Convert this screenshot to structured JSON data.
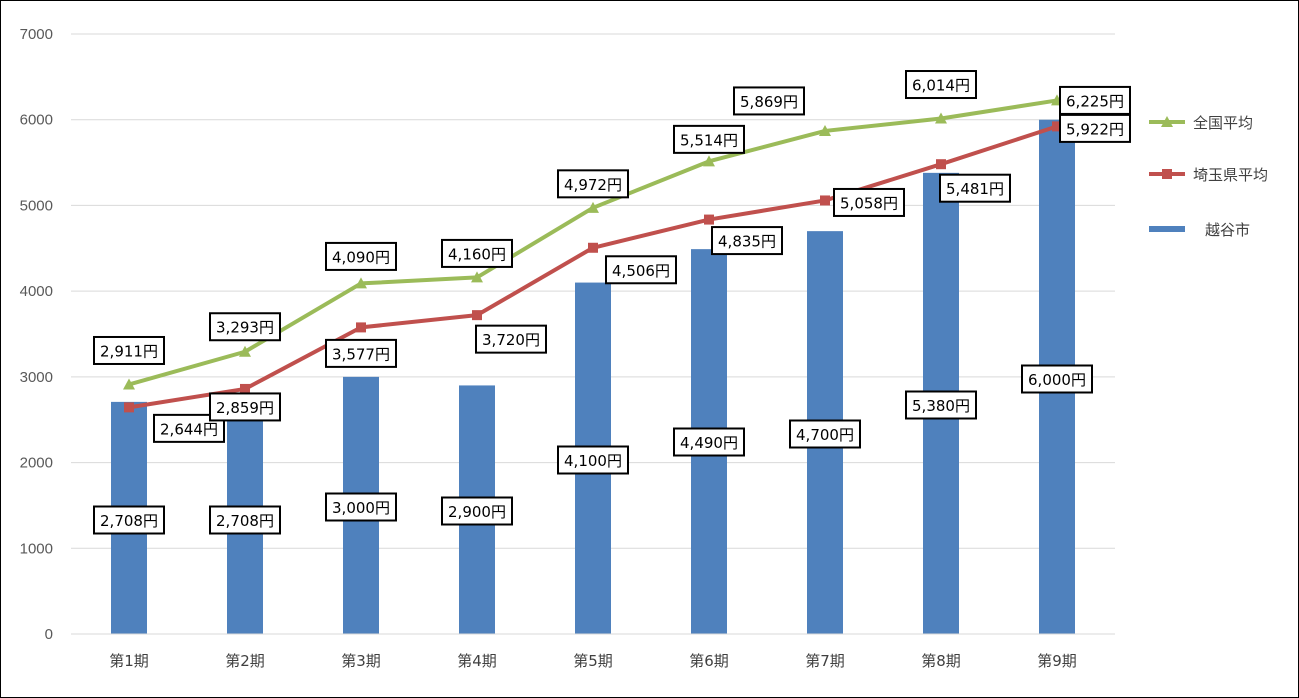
{
  "chart_data": {
    "type": "bar",
    "title": "",
    "xlabel": "",
    "ylabel": "",
    "ylim": [
      0,
      7000
    ],
    "yticks": [
      0,
      1000,
      2000,
      3000,
      4000,
      5000,
      6000,
      7000
    ],
    "grid": true,
    "legend_position": "right",
    "categories": [
      "第1期",
      "第2期",
      "第3期",
      "第4期",
      "第5期",
      "第6期",
      "第7期",
      "第8期",
      "第9期"
    ],
    "series": [
      {
        "name": "越谷市",
        "kind": "bar",
        "color": "#4f81bd",
        "values": [
          2708,
          2708,
          3000,
          2900,
          4100,
          4490,
          4700,
          5380,
          6000
        ],
        "labels": [
          "2,708円",
          "2,708円",
          "3,000円",
          "2,900円",
          "4,100円",
          "4,490円",
          "4,700円",
          "5,380円",
          "6,000円"
        ]
      },
      {
        "name": "全国平均",
        "kind": "line",
        "marker": "triangle",
        "color": "#9bbb59",
        "values": [
          2911,
          3293,
          4090,
          4160,
          4972,
          5514,
          5869,
          6014,
          6225
        ],
        "labels": [
          "2,911円",
          "3,293円",
          "4,090円",
          "4,160円",
          "4,972円",
          "5,514円",
          "5,869円",
          "6,014円",
          "6,225円"
        ]
      },
      {
        "name": "埼玉県平均",
        "kind": "line",
        "marker": "square",
        "color": "#c0504d",
        "values": [
          2644,
          2859,
          3577,
          3720,
          4506,
          4835,
          5058,
          5481,
          5922
        ],
        "labels": [
          "2,644円",
          "2,859円",
          "3,577円",
          "3,720円",
          "4,506円",
          "4,835円",
          "5,058円",
          "5,481円",
          "5,922円"
        ]
      }
    ],
    "legend": [
      "全国平均",
      "埼玉県平均",
      "越谷市"
    ]
  }
}
